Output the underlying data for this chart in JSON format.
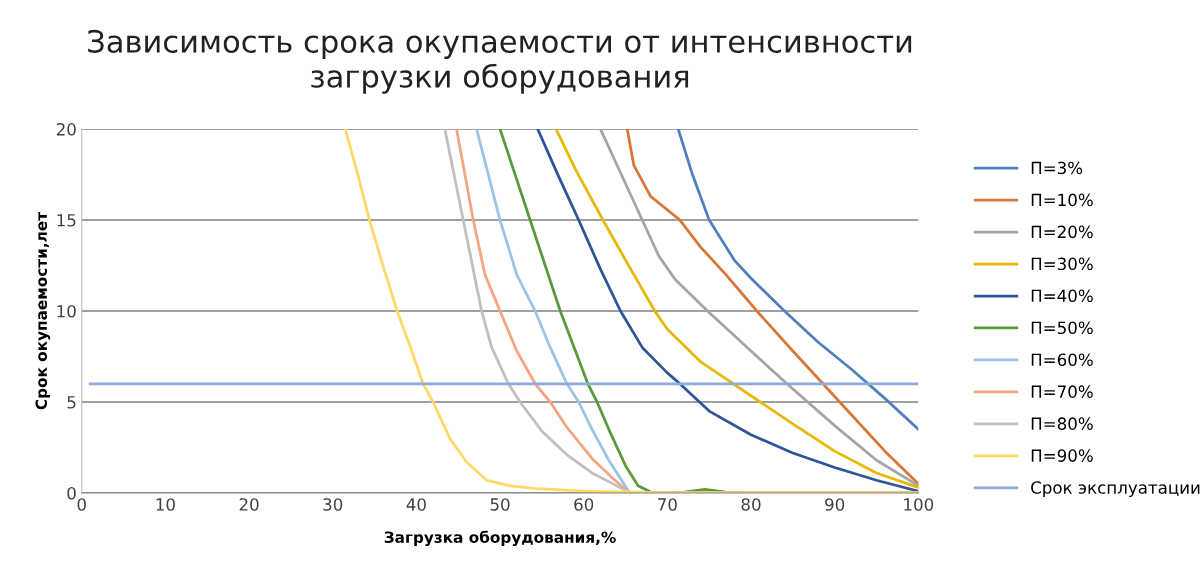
{
  "chart_data": {
    "type": "line",
    "title": "Зависимость срока окупаемости от интенсивности\nзагрузки оборудования",
    "xlabel": "Загрузка оборудования,%",
    "ylabel": "Срок окупаемости,лет",
    "xlim": [
      0,
      100
    ],
    "ylim": [
      0,
      20
    ],
    "xticks": [
      0,
      10,
      20,
      30,
      40,
      50,
      60,
      70,
      80,
      90,
      100
    ],
    "yticks": [
      0,
      5,
      10,
      15,
      20
    ],
    "grid": "y",
    "legend": "right",
    "marker": "none",
    "line_style": "solid",
    "series": [
      {
        "name": "П=3%",
        "color": "#4f81bd",
        "x": [
          71.3,
          73,
          75,
          78,
          80,
          84,
          88,
          92,
          96,
          100
        ],
        "values": [
          20,
          17.5,
          15,
          12.8,
          11.8,
          10,
          8.3,
          6.8,
          5.2,
          3.5
        ]
      },
      {
        "name": "П=10%",
        "color": "#d9773a",
        "x": [
          65.2,
          66,
          68,
          71.5,
          74,
          77,
          80.7,
          85,
          88.6,
          92,
          96,
          100
        ],
        "values": [
          20,
          18,
          16.3,
          15,
          13.5,
          12,
          10,
          7.8,
          6,
          4.3,
          2.3,
          0.5
        ]
      },
      {
        "name": "П=20%",
        "color": "#a5a5a5",
        "x": [
          62,
          64.5,
          67,
          69,
          71,
          74.8,
          80,
          84.3,
          90,
          95,
          100
        ],
        "values": [
          20,
          17.5,
          15,
          13,
          11.7,
          10,
          7.8,
          6,
          3.7,
          1.8,
          0.4
        ]
      },
      {
        "name": "П=30%",
        "color": "#e6b800",
        "x": [
          56.7,
          59,
          62.3,
          65,
          68.5,
          70,
          74,
          77.9,
          81.1,
          85,
          90,
          95,
          100
        ],
        "values": [
          20,
          17.8,
          15,
          12.8,
          10,
          9,
          7.2,
          6,
          5,
          3.8,
          2.3,
          1.1,
          0.3
        ]
      },
      {
        "name": "П=40%",
        "color": "#2f5597",
        "x": [
          54.5,
          57,
          59.4,
          62,
          64.4,
          67,
          70,
          71.5,
          75,
          80,
          85,
          90,
          95,
          100
        ],
        "values": [
          20,
          17.4,
          15,
          12.3,
          10,
          8,
          6.6,
          6,
          4.5,
          3.2,
          2.2,
          1.4,
          0.7,
          0.1
        ]
      },
      {
        "name": "П=50%",
        "color": "#5a9a3a",
        "x": [
          50,
          53.6,
          57.2,
          60.5,
          61.6,
          63,
          65,
          66.5,
          68,
          70,
          72,
          74.5,
          77,
          80,
          90,
          100
        ],
        "values": [
          20,
          15,
          10,
          6,
          5,
          3.5,
          1.5,
          0.4,
          0.05,
          0,
          0.05,
          0.2,
          0.05,
          0,
          0,
          0
        ]
      },
      {
        "name": "П=60%",
        "color": "#9dc3e6",
        "x": [
          47.2,
          50,
          52,
          54.2,
          56,
          58,
          59.4,
          61,
          63,
          65.5,
          80,
          100
        ],
        "values": [
          20,
          15,
          12,
          10,
          8,
          6,
          5,
          3.5,
          1.8,
          0,
          0,
          0
        ]
      },
      {
        "name": "П=70%",
        "color": "#f4a582",
        "x": [
          44.8,
          46.8,
          48.2,
          50,
          52,
          54.2,
          56,
          58,
          61,
          63.5,
          65.5,
          80,
          100
        ],
        "values": [
          20,
          15,
          12,
          10,
          7.8,
          6,
          5,
          3.6,
          1.9,
          0.8,
          0,
          0,
          0
        ]
      },
      {
        "name": "П=80%",
        "color": "#c0c0c0",
        "x": [
          43.4,
          45.6,
          47.8,
          49,
          51,
          52.4,
          55,
          58,
          61,
          63.5,
          65.5,
          80,
          100
        ],
        "values": [
          20,
          15,
          10,
          8,
          6,
          5,
          3.4,
          2.1,
          1.1,
          0.5,
          0,
          0,
          0
        ]
      },
      {
        "name": "П=90%",
        "color": "#ffd966",
        "x": [
          31.5,
          33,
          34.4,
          36,
          37.7,
          39.3,
          40.8,
          42,
          44,
          46,
          48.4,
          51,
          54,
          60,
          66,
          70,
          100
        ],
        "values": [
          20,
          17.5,
          15,
          12.5,
          10,
          8,
          6,
          5,
          3,
          1.7,
          0.7,
          0.4,
          0.25,
          0.1,
          0.05,
          0,
          0
        ]
      },
      {
        "name": "Срок эксплуатации",
        "color": "#8eaadb",
        "x": [
          1,
          100
        ],
        "values": [
          6,
          6
        ]
      }
    ]
  }
}
